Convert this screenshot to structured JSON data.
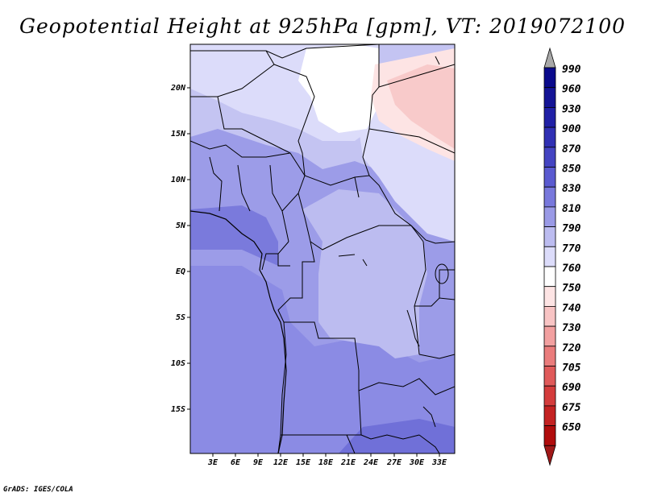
{
  "title": "Geopotential Height at 925hPa [gpm], VT: 2019072100",
  "footer": "GrADS: IGES/COLA",
  "map": {
    "lat_labels": [
      "20N",
      "15N",
      "10N",
      "5N",
      "EQ",
      "5S",
      "10S",
      "15S"
    ],
    "lon_labels": [
      "3E",
      "6E",
      "9E",
      "12E",
      "15E",
      "18E",
      "21E",
      "24E",
      "27E",
      "30E",
      "33E"
    ]
  },
  "legend": {
    "levels": [
      {
        "label": "990",
        "color": "#0a0a8c"
      },
      {
        "label": "960",
        "color": "#141496"
      },
      {
        "label": "930",
        "color": "#2020a6"
      },
      {
        "label": "900",
        "color": "#3030b4"
      },
      {
        "label": "870",
        "color": "#4444c2"
      },
      {
        "label": "850",
        "color": "#5a5ad0"
      },
      {
        "label": "830",
        "color": "#7878dc"
      },
      {
        "label": "810",
        "color": "#9a9ae6"
      },
      {
        "label": "790",
        "color": "#bcbcf0"
      },
      {
        "label": "770",
        "color": "#dcdcfa"
      },
      {
        "label": "760",
        "color": "#ffffff"
      },
      {
        "label": "750",
        "color": "#fde4e4"
      },
      {
        "label": "740",
        "color": "#f8c4c4"
      },
      {
        "label": "730",
        "color": "#f2a0a0"
      },
      {
        "label": "720",
        "color": "#ea7c7c"
      },
      {
        "label": "705",
        "color": "#e05a5a"
      },
      {
        "label": "690",
        "color": "#d43c3c"
      },
      {
        "label": "675",
        "color": "#c42222"
      },
      {
        "label": "650",
        "color": "#b00c0c"
      }
    ],
    "over_color": "#a8a8a8",
    "under_color": "#a01818"
  }
}
